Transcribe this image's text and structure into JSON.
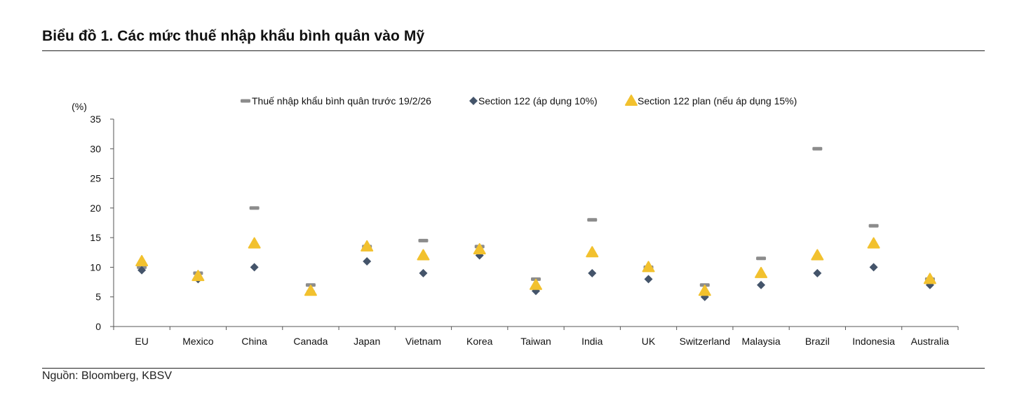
{
  "title": "Biểu đồ 1. Các mức thuế nhập khẩu bình quân vào Mỹ",
  "source": "Nguồn: Bloomberg, KBSV",
  "chart_data": {
    "type": "scatter",
    "unit_label": "(%)",
    "ylim": [
      0,
      35
    ],
    "yticks": [
      0,
      5,
      10,
      15,
      20,
      25,
      30,
      35
    ],
    "categories": [
      "EU",
      "Mexico",
      "China",
      "Canada",
      "Japan",
      "Vietnam",
      "Korea",
      "Taiwan",
      "India",
      "UK",
      "Switzerland",
      "Malaysia",
      "Brazil",
      "Indonesia",
      "Australia"
    ],
    "legend_position": "top",
    "grid": false,
    "series": [
      {
        "name": "Thuế nhập khẩu bình quân trước 19/2/26",
        "marker": "dash",
        "color": "#8c8c8c",
        "values": [
          10,
          9,
          20,
          7,
          13.5,
          14.5,
          13.5,
          8,
          18,
          10,
          7,
          11.5,
          30,
          17,
          8
        ]
      },
      {
        "name": "Section 122 (áp dụng 10%)",
        "marker": "diamond",
        "color": "#44546a",
        "values": [
          9.5,
          8,
          10,
          6,
          11,
          9,
          12,
          6,
          9,
          8,
          5,
          7,
          9,
          10,
          7
        ]
      },
      {
        "name": "Section 122 plan (nếu áp dụng 15%)",
        "marker": "triangle",
        "color": "#f2c12e",
        "values": [
          11,
          8.5,
          14,
          6,
          13.5,
          12,
          13,
          7,
          12.5,
          10,
          6,
          9,
          12,
          14,
          8
        ]
      }
    ]
  }
}
